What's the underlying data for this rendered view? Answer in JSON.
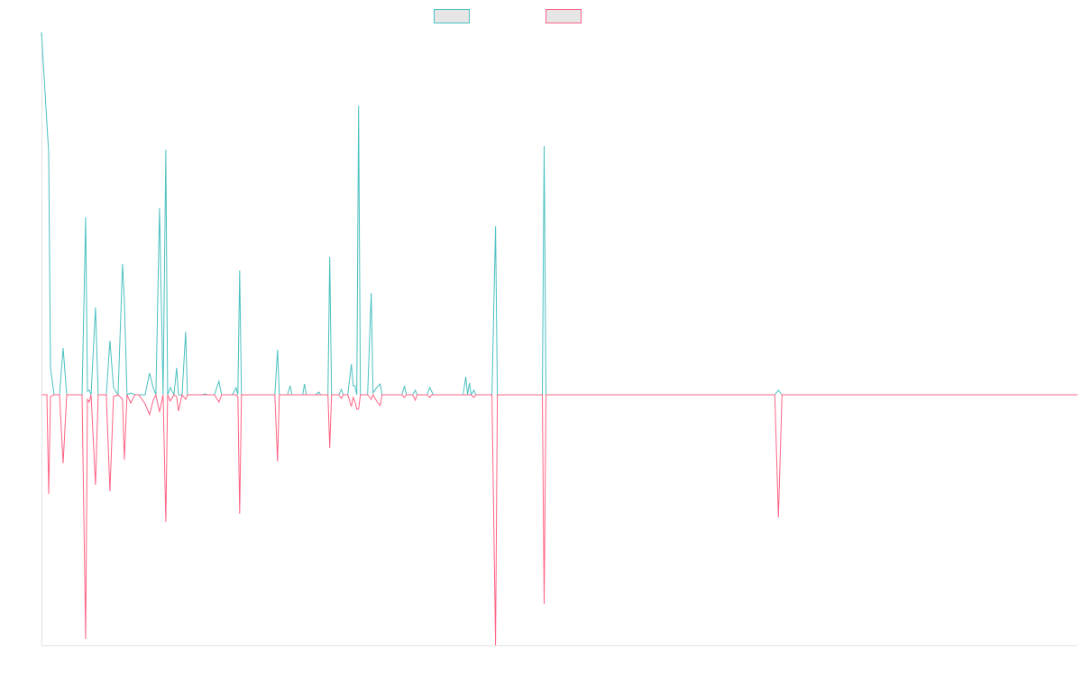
{
  "chart_data": {
    "type": "line",
    "title": "",
    "xlabel": "",
    "ylabel": "",
    "grid": false,
    "legend": "top-center",
    "ylim": [
      -278,
      402
    ],
    "xlim": [
      0,
      1150
    ],
    "series": [
      {
        "color": "#4bc0c0",
        "legend_fill": "#e6e6e6",
        "points": [
          [
            0,
            402
          ],
          [
            8,
            268
          ],
          [
            10,
            30
          ],
          [
            14,
            0
          ],
          [
            20,
            0
          ],
          [
            24,
            52
          ],
          [
            28,
            0
          ],
          [
            45,
            0
          ],
          [
            49,
            197
          ],
          [
            51,
            4
          ],
          [
            53,
            5
          ],
          [
            55,
            0
          ],
          [
            60,
            97
          ],
          [
            63,
            0
          ],
          [
            72,
            0
          ],
          [
            76,
            60
          ],
          [
            80,
            8
          ],
          [
            85,
            0
          ],
          [
            90,
            145
          ],
          [
            92,
            105
          ],
          [
            95,
            0
          ],
          [
            99,
            2
          ],
          [
            104,
            0
          ],
          [
            108,
            0
          ],
          [
            115,
            0
          ],
          [
            120,
            24
          ],
          [
            124,
            8
          ],
          [
            127,
            0
          ],
          [
            131,
            207
          ],
          [
            135,
            0
          ],
          [
            138,
            272
          ],
          [
            140,
            0
          ],
          [
            143,
            8
          ],
          [
            147,
            0
          ],
          [
            150,
            30
          ],
          [
            152,
            0
          ],
          [
            156,
            0
          ],
          [
            160,
            70
          ],
          [
            162,
            0
          ],
          [
            168,
            0
          ],
          [
            172,
            0
          ],
          [
            178,
            0
          ],
          [
            182,
            1
          ],
          [
            184,
            0
          ],
          [
            192,
            0
          ],
          [
            197,
            15
          ],
          [
            200,
            0
          ],
          [
            212,
            0
          ],
          [
            216,
            8
          ],
          [
            218,
            0
          ],
          [
            220,
            138
          ],
          [
            222,
            0
          ],
          [
            226,
            0
          ],
          [
            240,
            0
          ],
          [
            259,
            0
          ],
          [
            262,
            50
          ],
          [
            264,
            0
          ],
          [
            273,
            0
          ],
          [
            276,
            10
          ],
          [
            278,
            0
          ],
          [
            290,
            0
          ],
          [
            292,
            12
          ],
          [
            294,
            0
          ],
          [
            304,
            0
          ],
          [
            308,
            3
          ],
          [
            310,
            0
          ],
          [
            318,
            0
          ],
          [
            320,
            153
          ],
          [
            322,
            0
          ],
          [
            330,
            0
          ],
          [
            333,
            6
          ],
          [
            335,
            0
          ],
          [
            340,
            0
          ],
          [
            344,
            34
          ],
          [
            346,
            10
          ],
          [
            348,
            10
          ],
          [
            350,
            0
          ],
          [
            352,
            321
          ],
          [
            354,
            0
          ],
          [
            362,
            0
          ],
          [
            366,
            113
          ],
          [
            368,
            2
          ],
          [
            372,
            8
          ],
          [
            376,
            12
          ],
          [
            378,
            0
          ],
          [
            400,
            0
          ],
          [
            403,
            10
          ],
          [
            405,
            0
          ],
          [
            412,
            0
          ],
          [
            415,
            5
          ],
          [
            417,
            0
          ],
          [
            428,
            0
          ],
          [
            431,
            8
          ],
          [
            433,
            4
          ],
          [
            435,
            0
          ],
          [
            468,
            0
          ],
          [
            471,
            20
          ],
          [
            473,
            0
          ],
          [
            475,
            13
          ],
          [
            477,
            0
          ],
          [
            480,
            5
          ],
          [
            482,
            0
          ],
          [
            500,
            0
          ],
          [
            504,
            187
          ],
          [
            506,
            0
          ],
          [
            556,
            0
          ],
          [
            558,
            276
          ],
          [
            560,
            0
          ],
          [
            814,
            0
          ],
          [
            818,
            5
          ],
          [
            822,
            0
          ],
          [
            1150,
            0
          ]
        ]
      },
      {
        "color": "#ff6384",
        "legend_fill": "#e6e6e6",
        "points": [
          [
            0,
            0
          ],
          [
            6,
            0
          ],
          [
            8,
            -110
          ],
          [
            10,
            -2
          ],
          [
            14,
            0
          ],
          [
            20,
            0
          ],
          [
            24,
            -76
          ],
          [
            28,
            0
          ],
          [
            45,
            0
          ],
          [
            49,
            -271
          ],
          [
            51,
            -5
          ],
          [
            53,
            -8
          ],
          [
            55,
            0
          ],
          [
            60,
            -100
          ],
          [
            63,
            0
          ],
          [
            72,
            0
          ],
          [
            76,
            -107
          ],
          [
            80,
            -2
          ],
          [
            85,
            0
          ],
          [
            90,
            -5
          ],
          [
            92,
            -72
          ],
          [
            95,
            0
          ],
          [
            99,
            -9
          ],
          [
            104,
            0
          ],
          [
            108,
            0
          ],
          [
            115,
            -10
          ],
          [
            120,
            -22
          ],
          [
            124,
            -6
          ],
          [
            127,
            0
          ],
          [
            131,
            -19
          ],
          [
            135,
            0
          ],
          [
            138,
            -141
          ],
          [
            140,
            0
          ],
          [
            143,
            -7
          ],
          [
            147,
            0
          ],
          [
            150,
            -2
          ],
          [
            152,
            -18
          ],
          [
            156,
            0
          ],
          [
            160,
            -5
          ],
          [
            162,
            0
          ],
          [
            168,
            0
          ],
          [
            172,
            0
          ],
          [
            178,
            0
          ],
          [
            182,
            0
          ],
          [
            184,
            0
          ],
          [
            192,
            0
          ],
          [
            197,
            -8
          ],
          [
            200,
            0
          ],
          [
            212,
            0
          ],
          [
            216,
            0
          ],
          [
            218,
            -2
          ],
          [
            220,
            -132
          ],
          [
            222,
            0
          ],
          [
            226,
            0
          ],
          [
            240,
            0
          ],
          [
            259,
            0
          ],
          [
            262,
            -74
          ],
          [
            264,
            0
          ],
          [
            273,
            0
          ],
          [
            276,
            0
          ],
          [
            278,
            0
          ],
          [
            290,
            0
          ],
          [
            292,
            0
          ],
          [
            294,
            0
          ],
          [
            304,
            0
          ],
          [
            308,
            0
          ],
          [
            310,
            0
          ],
          [
            318,
            0
          ],
          [
            320,
            -59
          ],
          [
            322,
            0
          ],
          [
            330,
            0
          ],
          [
            333,
            -4
          ],
          [
            335,
            0
          ],
          [
            340,
            0
          ],
          [
            344,
            -13
          ],
          [
            346,
            -3
          ],
          [
            348,
            -8
          ],
          [
            350,
            -16
          ],
          [
            352,
            -16
          ],
          [
            354,
            0
          ],
          [
            362,
            0
          ],
          [
            366,
            -5
          ],
          [
            368,
            0
          ],
          [
            372,
            -7
          ],
          [
            376,
            -12
          ],
          [
            378,
            0
          ],
          [
            400,
            0
          ],
          [
            403,
            -3
          ],
          [
            405,
            0
          ],
          [
            412,
            0
          ],
          [
            415,
            -6
          ],
          [
            417,
            0
          ],
          [
            428,
            0
          ],
          [
            431,
            -3
          ],
          [
            433,
            0
          ],
          [
            435,
            0
          ],
          [
            468,
            0
          ],
          [
            471,
            0
          ],
          [
            473,
            0
          ],
          [
            475,
            0
          ],
          [
            477,
            0
          ],
          [
            480,
            -3
          ],
          [
            482,
            0
          ],
          [
            500,
            0
          ],
          [
            504,
            -278
          ],
          [
            506,
            0
          ],
          [
            556,
            0
          ],
          [
            558,
            -232
          ],
          [
            560,
            0
          ],
          [
            814,
            0
          ],
          [
            818,
            -136
          ],
          [
            822,
            0
          ],
          [
            1150,
            0
          ]
        ]
      }
    ]
  }
}
